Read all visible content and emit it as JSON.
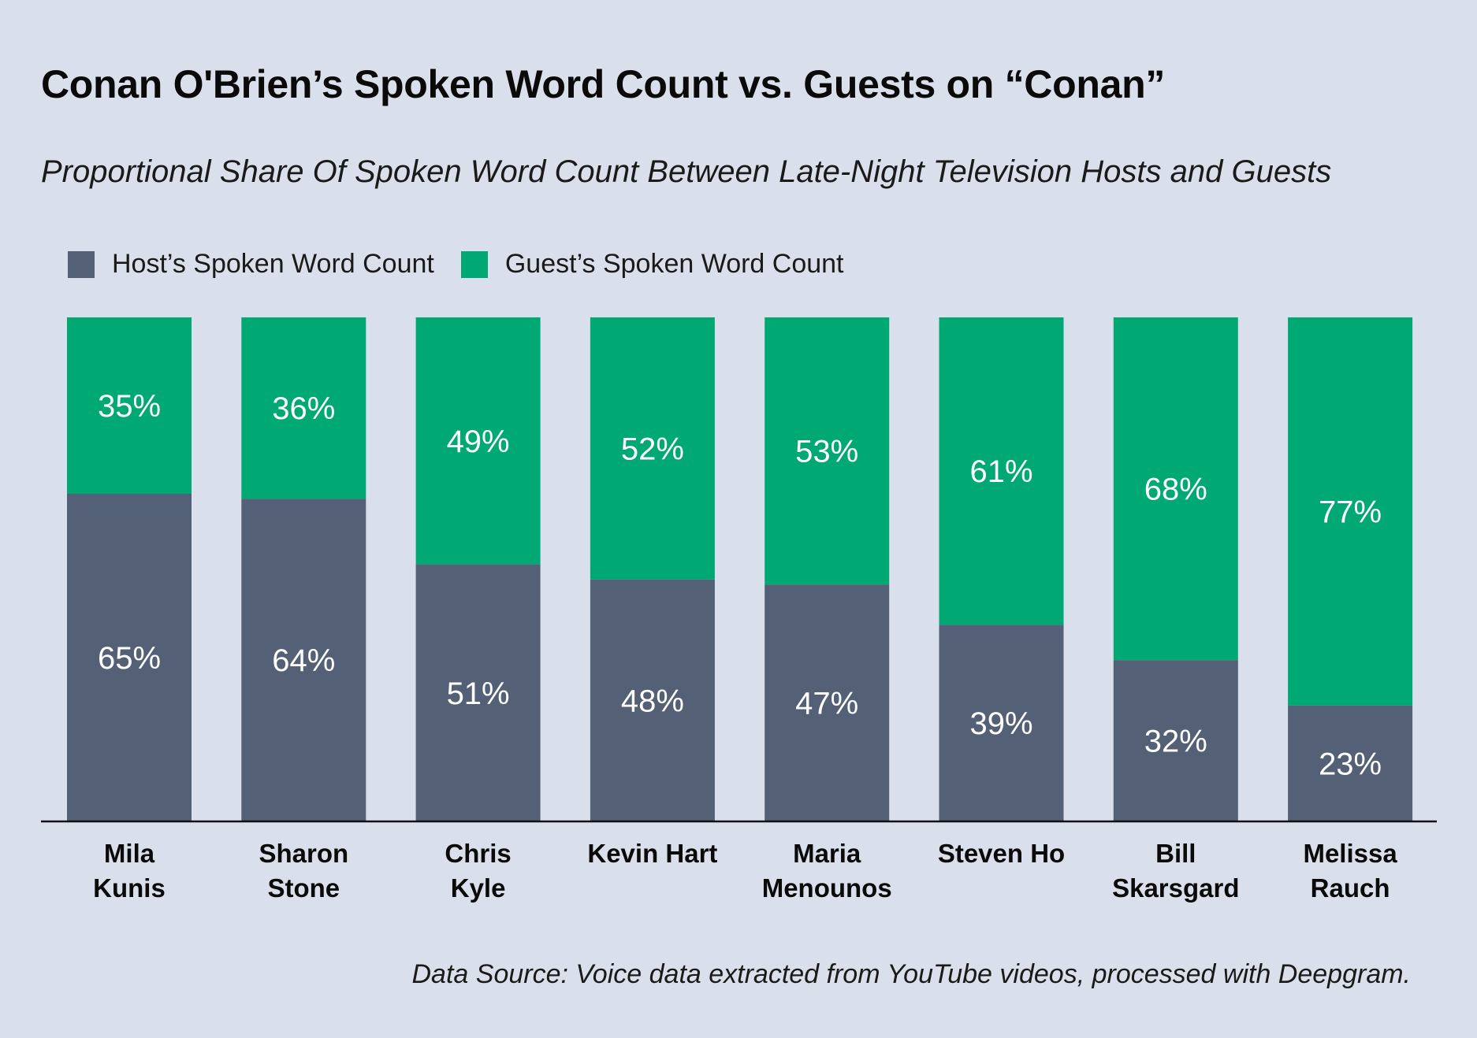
{
  "title": "Conan O'Brien’s Spoken Word Count vs. Guests on “Conan”",
  "subtitle": "Proportional Share Of Spoken Word Count Between Late-Night Television Hosts and Guests",
  "source": "Data Source: Voice data extracted from YouTube videos, processed with Deepgram.",
  "colors": {
    "host": "#536075",
    "guest": "#00a873",
    "background": "#dae0eb"
  },
  "chart_data": {
    "type": "bar",
    "stacked": true,
    "normalized": true,
    "title": "Conan O'Brien’s Spoken Word Count vs. Guests on “Conan”",
    "subtitle": "Proportional Share Of Spoken Word Count Between Late-Night Television Hosts and Guests",
    "legend_position": "top-left",
    "ylim": [
      0,
      100
    ],
    "categories": [
      [
        "Mila",
        "Kunis"
      ],
      [
        "Sharon",
        "Stone"
      ],
      [
        "Chris",
        "Kyle"
      ],
      [
        "Kevin Hart"
      ],
      [
        "Maria",
        "Menounos"
      ],
      [
        "Steven Ho"
      ],
      [
        "Bill",
        "Skarsgard"
      ],
      [
        "Melissa",
        "Rauch"
      ]
    ],
    "series": [
      {
        "name": "Host’s Spoken Word Count",
        "color": "#536075",
        "values": [
          65,
          64,
          51,
          48,
          47,
          39,
          32,
          23
        ]
      },
      {
        "name": "Guest’s Spoken Word Count",
        "color": "#00a873",
        "values": [
          35,
          36,
          49,
          52,
          53,
          61,
          68,
          77
        ]
      }
    ],
    "value_suffix": "%"
  }
}
